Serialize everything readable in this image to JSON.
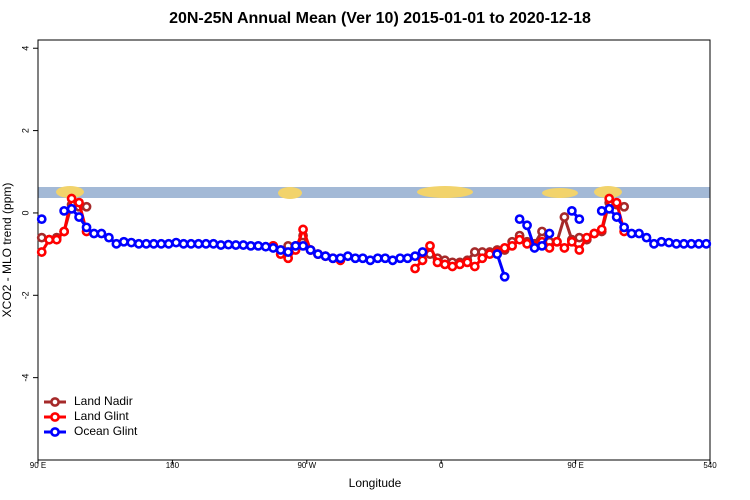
{
  "chart_data": {
    "type": "line",
    "title": "20N-25N Annual Mean (Ver 10)   2015-01-01 to 2020-12-18",
    "x_label": "Longitude",
    "y_label": "XCO2 - MLO trend (ppm)",
    "xlim": [
      90,
      540
    ],
    "ylim": [
      -6,
      4.2
    ],
    "xticks": [
      {
        "value": 90,
        "label": "90 E"
      },
      180,
      {
        "value": 270,
        "label": "90 W"
      },
      {
        "value": 360,
        "label": "0"
      },
      {
        "value": 450,
        "label": "90 E"
      },
      540
    ],
    "yticks": [
      -4,
      -2,
      0,
      2,
      4
    ],
    "legend": "bottom-left",
    "x": [
      92.5,
      97.5,
      102.5,
      107.5,
      112.5,
      117.5,
      122.5,
      127.5,
      132.5,
      137.5,
      142.5,
      147.5,
      152.5,
      157.5,
      162.5,
      167.5,
      172.5,
      177.5,
      182.5,
      187.5,
      192.5,
      197.5,
      202.5,
      207.5,
      212.5,
      217.5,
      222.5,
      227.5,
      232.5,
      237.5,
      242.5,
      247.5,
      252.5,
      257.5,
      262.5,
      267.5,
      272.5,
      277.5,
      282.5,
      287.5,
      292.5,
      297.5,
      302.5,
      307.5,
      312.5,
      317.5,
      322.5,
      327.5,
      332.5,
      337.5,
      342.5,
      347.5,
      352.5,
      357.5,
      362.5,
      367.5,
      372.5,
      377.5,
      382.5,
      387.5,
      392.5,
      397.5,
      402.5,
      407.5,
      412.5,
      417.5,
      422.5,
      427.5,
      432.5,
      437.5,
      442.5,
      447.5,
      452.5,
      457.5,
      462.5,
      467.5,
      472.5,
      477.5,
      482.5,
      487.5,
      492.5,
      497.5,
      502.5,
      507.5,
      512.5,
      517.5,
      522.5,
      527.5,
      532.5,
      537.5
    ],
    "series": [
      {
        "name": "Land Nadir",
        "color": "#a52a2a",
        "values": [
          -0.6,
          -0.65,
          -0.6,
          -0.45,
          0.2,
          0.15,
          0.15,
          null,
          null,
          null,
          null,
          null,
          null,
          null,
          null,
          null,
          null,
          null,
          null,
          null,
          null,
          null,
          null,
          null,
          null,
          null,
          null,
          null,
          null,
          null,
          null,
          -0.8,
          -0.9,
          -0.8,
          -0.8,
          -0.55,
          -0.9,
          -1.0,
          null,
          null,
          null,
          null,
          null,
          null,
          null,
          null,
          null,
          null,
          null,
          null,
          null,
          null,
          -1.0,
          -1.1,
          -1.15,
          -1.2,
          -1.2,
          -1.15,
          -0.95,
          -0.95,
          -0.95,
          -0.9,
          -0.9,
          -0.7,
          -0.55,
          -0.7,
          -0.75,
          -0.45,
          -0.7,
          -0.7,
          -0.1,
          -0.65,
          -0.6,
          -0.65,
          -0.5,
          -0.45,
          0.25,
          0.2,
          0.15,
          null,
          null,
          null,
          null,
          null,
          null,
          null,
          null,
          null,
          null,
          null
        ]
      },
      {
        "name": "Land Glint",
        "color": "#ff0000",
        "values": [
          -0.95,
          -0.65,
          -0.65,
          -0.45,
          0.35,
          0.25,
          -0.45,
          null,
          null,
          null,
          null,
          null,
          null,
          null,
          null,
          null,
          null,
          null,
          null,
          null,
          null,
          null,
          null,
          null,
          null,
          null,
          null,
          null,
          null,
          null,
          null,
          -0.8,
          -1.0,
          -1.1,
          -0.9,
          -0.4,
          -0.9,
          -1.0,
          -1.05,
          -1.1,
          -1.15,
          null,
          null,
          null,
          null,
          null,
          null,
          null,
          null,
          null,
          -1.35,
          -1.15,
          -0.8,
          -1.2,
          -1.25,
          -1.3,
          -1.25,
          -1.2,
          -1.3,
          -1.1,
          -1.0,
          -0.95,
          -0.85,
          -0.8,
          -0.65,
          -0.75,
          -0.8,
          -0.7,
          -0.85,
          -0.7,
          -0.85,
          -0.7,
          -0.9,
          -0.6,
          -0.5,
          -0.4,
          0.35,
          0.25,
          -0.45,
          null,
          null,
          null,
          null,
          null,
          null,
          null,
          null,
          null,
          null,
          null
        ]
      },
      {
        "name": "Ocean Glint",
        "color": "#0000ff",
        "values": [
          -0.15,
          null,
          null,
          0.05,
          0.1,
          -0.1,
          -0.35,
          -0.5,
          -0.5,
          -0.6,
          -0.75,
          -0.7,
          -0.72,
          -0.75,
          -0.75,
          -0.75,
          -0.75,
          -0.75,
          -0.72,
          -0.75,
          -0.75,
          -0.75,
          -0.75,
          -0.75,
          -0.78,
          -0.77,
          -0.78,
          -0.78,
          -0.8,
          -0.8,
          -0.82,
          -0.85,
          -0.9,
          -0.95,
          -0.8,
          -0.8,
          -0.9,
          -1.0,
          -1.05,
          -1.1,
          -1.1,
          -1.05,
          -1.1,
          -1.1,
          -1.15,
          -1.1,
          -1.1,
          -1.15,
          -1.1,
          -1.1,
          -1.05,
          -0.95,
          null,
          null,
          null,
          null,
          null,
          null,
          null,
          null,
          null,
          -1.0,
          -1.55,
          null,
          -0.15,
          -0.3,
          -0.85,
          -0.8,
          -0.5,
          null,
          null,
          0.05,
          -0.15,
          null,
          null,
          0.05,
          0.1,
          -0.1,
          -0.35,
          -0.5,
          -0.5,
          -0.6,
          -0.75,
          -0.7,
          -0.72,
          -0.75,
          -0.75,
          -0.75,
          -0.75,
          -0.75
        ]
      }
    ]
  }
}
